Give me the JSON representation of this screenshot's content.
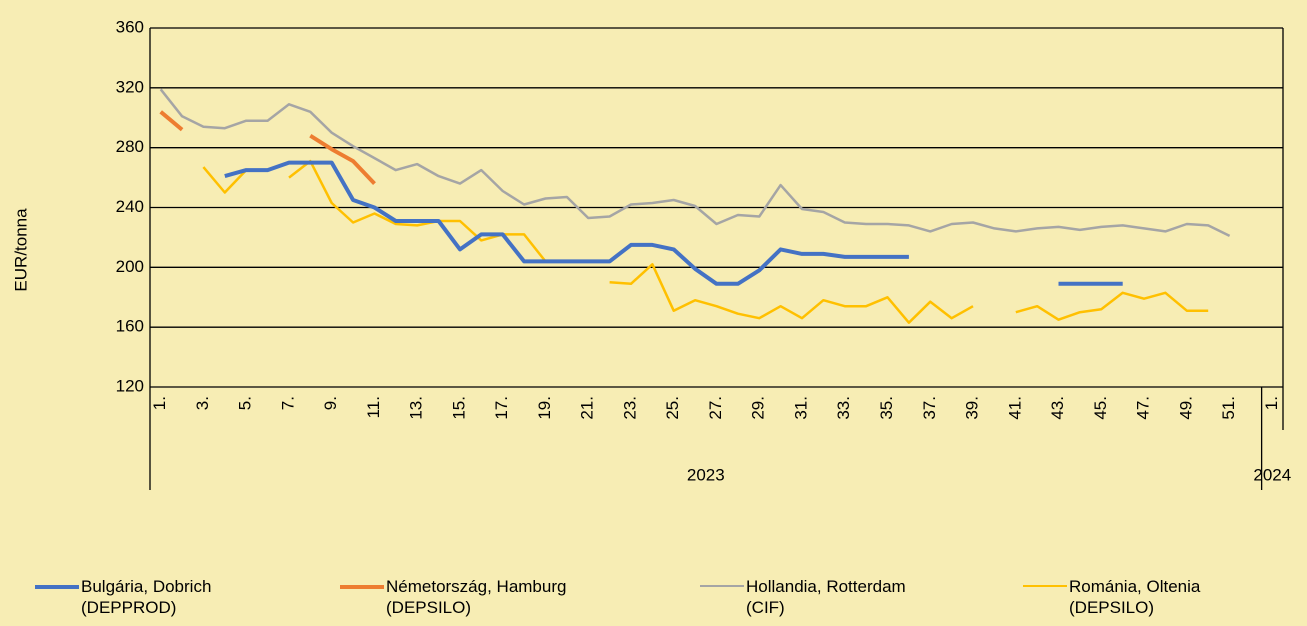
{
  "chart_data": {
    "type": "line",
    "y_label": "EUR/tonna",
    "category_groups": [
      {
        "label": "2023",
        "categories": [
          "1.",
          null,
          "3.",
          null,
          "5.",
          null,
          "7.",
          null,
          "9.",
          null,
          "11.",
          null,
          "13.",
          null,
          "15.",
          null,
          "17.",
          null,
          "19.",
          null,
          "21.",
          null,
          "23.",
          null,
          "25.",
          null,
          "27.",
          null,
          "29.",
          null,
          "31.",
          null,
          "33.",
          null,
          "35.",
          null,
          "37.",
          null,
          "39.",
          null,
          "41.",
          null,
          "43.",
          null,
          "45.",
          null,
          "47.",
          null,
          "49.",
          null,
          "51.",
          null
        ]
      },
      {
        "label": "2024",
        "categories": [
          "1."
        ]
      }
    ],
    "ylim": [
      120,
      360
    ],
    "yticks": [
      120,
      160,
      200,
      240,
      280,
      320,
      360
    ],
    "grid": true,
    "legend": "bottom",
    "series": [
      {
        "name": "Bulgária, Dobrich\n(DEPPROD)",
        "color": "#4472c4",
        "width": 4,
        "values": [
          null,
          null,
          null,
          261,
          265,
          265,
          270,
          270,
          270,
          245,
          240,
          231,
          231,
          231,
          212,
          222,
          222,
          204,
          204,
          204,
          204,
          204,
          215,
          215,
          212,
          199,
          189,
          189,
          198,
          212,
          209,
          209,
          207,
          207,
          207,
          207,
          null,
          null,
          null,
          null,
          null,
          null,
          189,
          189,
          189,
          189,
          null,
          null,
          null,
          null,
          null,
          null,
          null
        ]
      },
      {
        "name": "Németország, Hamburg\n(DEPSILO)",
        "color": "#ed7d31",
        "width": 4,
        "values": [
          304,
          292,
          null,
          null,
          null,
          null,
          null,
          288,
          279,
          271,
          256,
          null,
          null,
          null,
          null,
          null,
          null,
          null,
          null,
          null,
          null,
          null,
          null,
          null,
          null,
          null,
          null,
          null,
          null,
          null,
          null,
          null,
          null,
          null,
          null,
          null,
          null,
          null,
          null,
          null,
          null,
          null,
          null,
          null,
          null,
          null,
          null,
          null,
          null,
          null,
          null,
          null,
          null
        ]
      },
      {
        "name": "Hollandia, Rotterdam\n(CIF)",
        "color": "#a5a5a5",
        "width": 2.5,
        "values": [
          319,
          301,
          294,
          293,
          298,
          298,
          309,
          304,
          290,
          281,
          273,
          265,
          269,
          261,
          256,
          265,
          251,
          242,
          246,
          247,
          233,
          234,
          242,
          243,
          245,
          241,
          229,
          235,
          234,
          255,
          239,
          237,
          230,
          229,
          229,
          228,
          224,
          229,
          230,
          226,
          224,
          226,
          227,
          225,
          227,
          228,
          226,
          224,
          229,
          228,
          221,
          null,
          null
        ]
      },
      {
        "name": "Románia, Oltenia\n(DEPSILO)",
        "color": "#ffc000",
        "width": 2.5,
        "values": [
          null,
          null,
          267,
          250,
          265,
          null,
          260,
          271,
          243,
          230,
          236,
          229,
          228,
          231,
          231,
          218,
          222,
          222,
          204,
          null,
          null,
          190,
          189,
          202,
          171,
          178,
          174,
          169,
          166,
          174,
          166,
          178,
          174,
          174,
          180,
          163,
          177,
          166,
          174,
          null,
          170,
          174,
          165,
          170,
          172,
          183,
          179,
          183,
          171,
          171,
          null,
          null,
          null
        ]
      }
    ]
  }
}
